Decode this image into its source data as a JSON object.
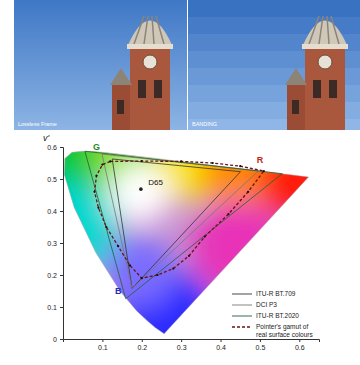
{
  "image": {
    "labels": [
      "Lossless Frame",
      "BANDING"
    ]
  },
  "chart_data": {
    "type": "chromaticity",
    "y_label": "v'",
    "xlim": [
      0,
      0.65
    ],
    "ylim": [
      0,
      0.6
    ],
    "xticks": [
      0.1,
      0.2,
      0.3,
      0.4,
      0.5,
      0.6
    ],
    "yticks": [
      0,
      0.1,
      0.2,
      0.3,
      0.4,
      0.5,
      0.6
    ],
    "legend": "lower right",
    "series": [
      {
        "type": "area",
        "x": [
          0.2568,
          0.2347,
          0.2161,
          0.1877,
          0.1441,
          0.0828,
          0.0282,
          0.0035,
          0.0046,
          0.0231,
          0.0501,
          0.0792,
          0.1127,
          0.1531,
          0.2026,
          0.2623,
          0.3315,
          0.4035,
          0.5203,
          0.583,
          0.6234
        ],
        "values": [
          0.0166,
          0.035,
          0.0549,
          0.0871,
          0.151,
          0.2708,
          0.4117,
          0.5131,
          0.5638,
          0.5837,
          0.5868,
          0.5856,
          0.5821,
          0.5766,
          0.5694,
          0.5604,
          0.5501,
          0.5393,
          0.5219,
          0.5125,
          0.5065
        ]
      },
      {
        "name": "ITU-R BT.709",
        "type": "line",
        "color": "#333333",
        "x": [
          0.4507,
          0.125,
          0.1754
        ],
        "values": [
          0.5229,
          0.5625,
          0.1579
        ]
      },
      {
        "name": "DCI P3",
        "type": "line",
        "color": "#777777",
        "x": [
          0.4964,
          0.099,
          0.1754
        ],
        "values": [
          0.5256,
          0.5778,
          0.1579
        ]
      },
      {
        "name": "ITU-R BT.2020",
        "type": "line",
        "color": "#1f5f3a",
        "x": [
          0.5566,
          0.0556,
          0.1593
        ],
        "values": [
          0.5165,
          0.5868,
          0.1258
        ]
      },
      {
        "name": "Pointer's gamut of real surface colours",
        "type": "line",
        "color": "#6b1414",
        "line_style": "dashed",
        "marker": "circle",
        "x": [
          0.12,
          0.2,
          0.3,
          0.38,
          0.45,
          0.51,
          0.47,
          0.42,
          0.36,
          0.32,
          0.28,
          0.24,
          0.2,
          0.17,
          0.14,
          0.11,
          0.09,
          0.08,
          0.085,
          0.1
        ],
        "values": [
          0.555,
          0.556,
          0.555,
          0.55,
          0.54,
          0.525,
          0.46,
          0.39,
          0.32,
          0.26,
          0.22,
          0.2,
          0.19,
          0.23,
          0.29,
          0.35,
          0.41,
          0.46,
          0.51,
          0.545
        ]
      },
      {
        "type": "scatter",
        "color": "#222222",
        "x": [
          0.1978
        ],
        "values": [
          0.4683
        ]
      }
    ],
    "annotations": [
      {
        "text": "G",
        "x": 0.085,
        "y": 0.59
      },
      {
        "text": "R",
        "x": 0.5,
        "y": 0.55
      },
      {
        "text": "B",
        "x": 0.14,
        "y": 0.14
      },
      {
        "text": "D65",
        "x": 0.235,
        "y": 0.48
      }
    ]
  }
}
